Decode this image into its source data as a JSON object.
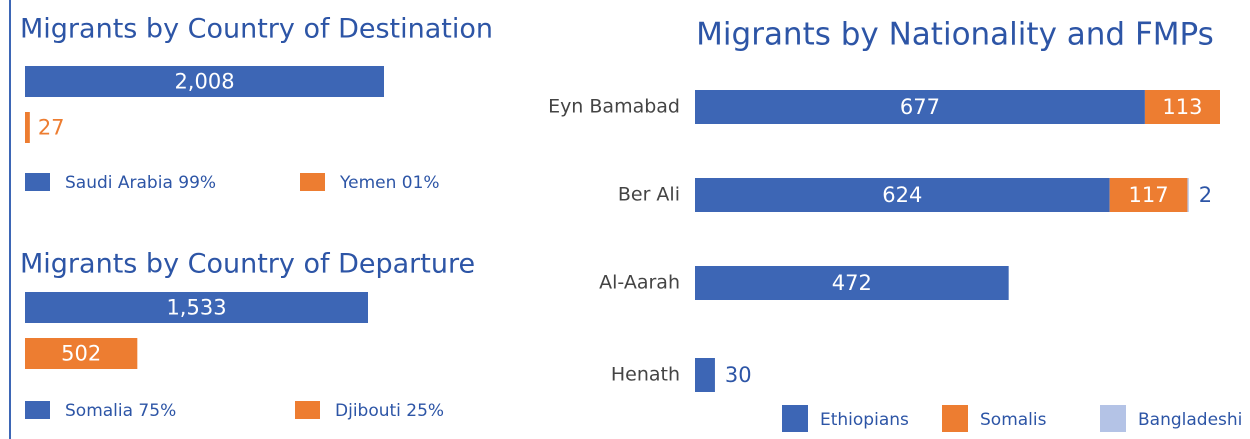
{
  "chart_data": [
    {
      "type": "bar",
      "orientation": "horizontal",
      "title": "Migrants by Country of Destination",
      "categories": [
        "Saudi Arabia 99%",
        "Yemen 01%"
      ],
      "values": [
        2008,
        27
      ],
      "value_labels": [
        "2,008",
        "27"
      ],
      "colors": [
        "#3d66b5",
        "#ed7d31"
      ]
    },
    {
      "type": "bar",
      "orientation": "horizontal",
      "title": "Migrants by Country of Departure",
      "categories": [
        "Somalia 75%",
        "Djibouti 25%"
      ],
      "values": [
        1533,
        502
      ],
      "value_labels": [
        "1,533",
        "502"
      ],
      "colors": [
        "#3d66b5",
        "#ed7d31"
      ]
    },
    {
      "type": "stacked_bar",
      "orientation": "horizontal",
      "title": "Migrants by Nationality and FMPs",
      "categories": [
        "Eyn Bamabad",
        "Ber Ali",
        "Al-Aarah",
        "Henath"
      ],
      "series": [
        {
          "name": "Ethiopians",
          "color": "#3d66b5",
          "values": [
            677,
            624,
            472,
            30
          ]
        },
        {
          "name": "Somalis",
          "color": "#ed7d31",
          "values": [
            113,
            117,
            null,
            null
          ]
        },
        {
          "name": "Bangladeshi",
          "color": "#b4c3e6",
          "values": [
            null,
            2,
            null,
            null
          ]
        }
      ]
    }
  ]
}
